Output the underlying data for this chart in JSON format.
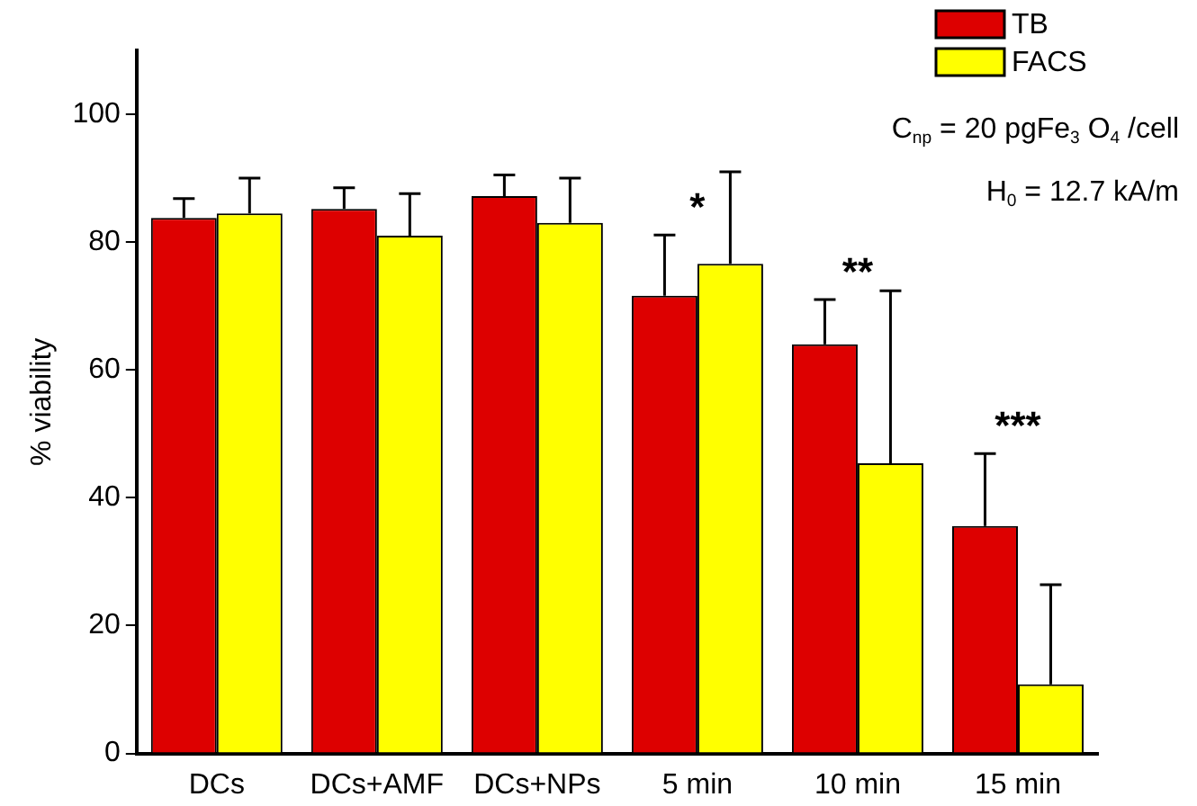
{
  "chart_data": {
    "type": "bar",
    "ylabel": "% viability",
    "categories": [
      "DCs",
      "DCs+AMF",
      "DCs+NPs",
      "5 min",
      "10 min",
      "15 min"
    ],
    "series": [
      {
        "name": "TB",
        "color": "#dd0000",
        "values": [
          83.8,
          85.2,
          87.2,
          71.6,
          64,
          35.6
        ],
        "errors": [
          [
            83.8,
            86.8
          ],
          [
            85.2,
            88.5
          ],
          [
            87.2,
            90.5
          ],
          [
            71.6,
            81.1
          ],
          [
            64,
            71
          ],
          [
            35.6,
            46.9
          ]
        ]
      },
      {
        "name": "FACS",
        "color": "#ffff00",
        "values": [
          84.5,
          81,
          83,
          76.6,
          45.4,
          10.8
        ],
        "errors": [
          [
            84.5,
            90
          ],
          [
            81,
            87.6
          ],
          [
            83,
            90
          ],
          [
            76.6,
            91
          ],
          [
            45.4,
            72.4
          ],
          [
            10.8,
            26.4
          ]
        ]
      }
    ],
    "ylim": [
      0,
      110
    ],
    "yticks": [
      0,
      20,
      40,
      60,
      80,
      100
    ],
    "grid": false,
    "legend": "top right",
    "annotations": [
      "*",
      "**",
      "***",
      "C$_{np}$ = 20 pgFe$_{3}$ O$_{4}$ /cell",
      "H$_{0}$ = 12.7 kA/m"
    ]
  }
}
